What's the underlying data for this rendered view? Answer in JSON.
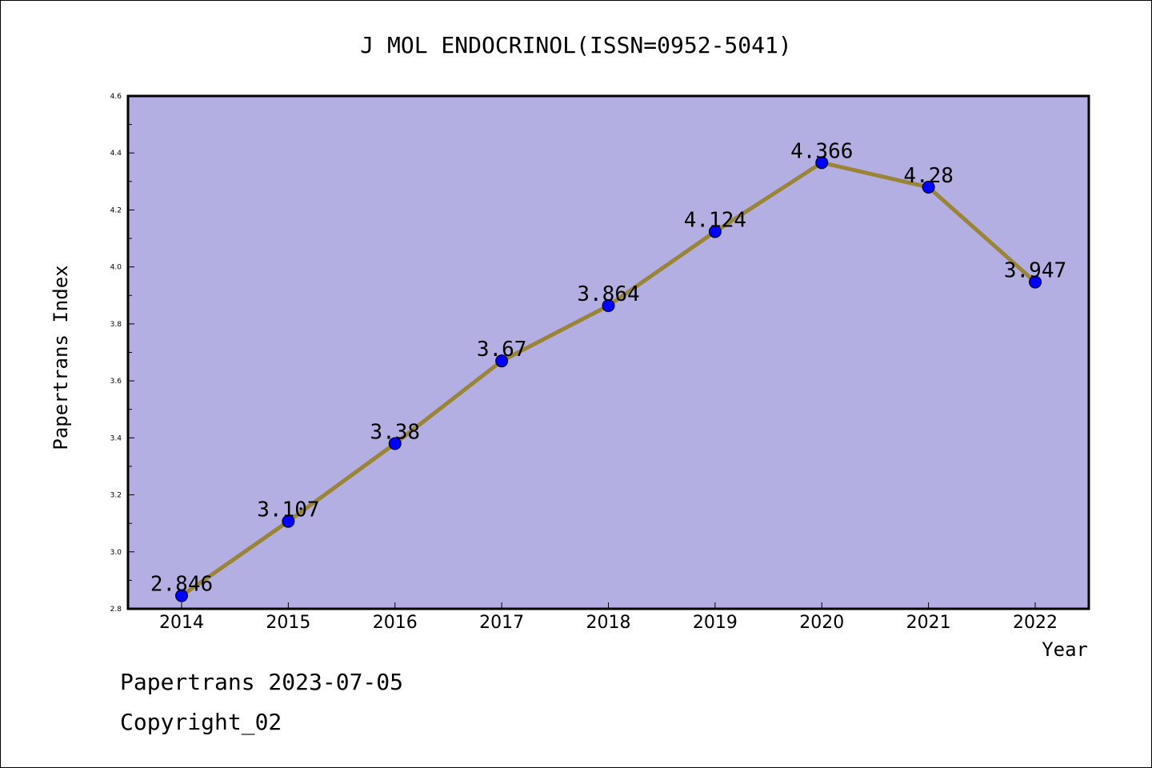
{
  "footer": {
    "line1": "Papertrans 2023-07-05",
    "line2": "Copyright_02"
  },
  "colors": {
    "plot_background": "#b4afe2",
    "line": "#9a8438",
    "marker": "#0000ff"
  },
  "chart_data": {
    "type": "line",
    "title": "J MOL ENDOCRINOL(ISSN=0952-5041)",
    "xlabel": "Year",
    "ylabel": "Papertrans Index",
    "categories": [
      "2014",
      "2015",
      "2016",
      "2017",
      "2018",
      "2019",
      "2020",
      "2021",
      "2022"
    ],
    "series": [
      {
        "values": [
          2.846,
          3.107,
          3.38,
          3.67,
          3.864,
          4.124,
          4.366,
          4.28,
          3.947
        ],
        "labels": [
          "2.846",
          "3.107",
          "3.38",
          "3.67",
          "3.864",
          "4.124",
          "4.366",
          "4.28",
          "3.947"
        ]
      }
    ],
    "ylim": [
      2.8,
      4.6
    ],
    "yticks": [
      "2.8",
      "3.0",
      "3.2",
      "3.4",
      "3.6",
      "3.8",
      "4.0",
      "4.2",
      "4.4",
      "4.6"
    ],
    "grid": false,
    "legend": "none"
  }
}
